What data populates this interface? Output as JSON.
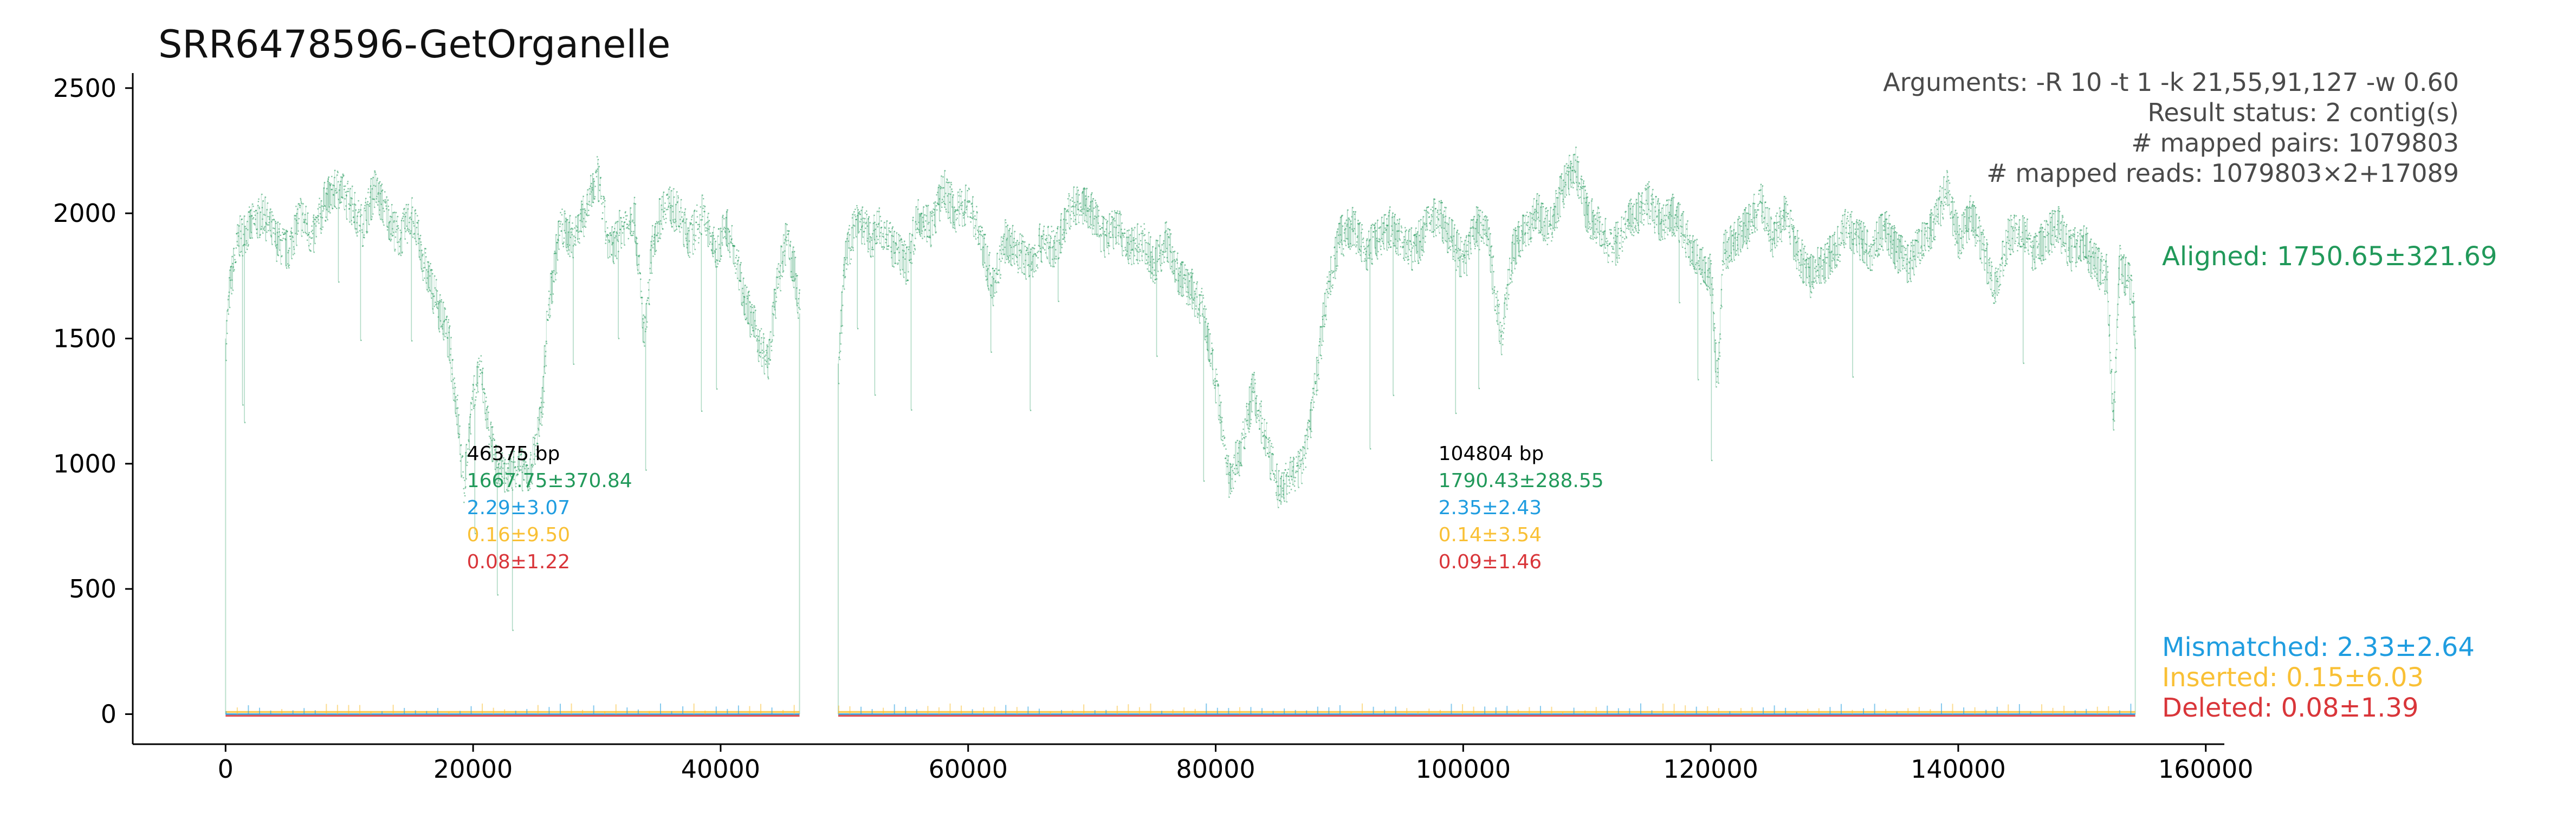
{
  "chart_data": {
    "type": "scatter",
    "title": "SRR6478596-GetOrganelle",
    "xlabel": "",
    "ylabel": "",
    "xlim": [
      -7500,
      161500
    ],
    "ylim": [
      -120,
      2560
    ],
    "x_ticks": [
      0,
      20000,
      40000,
      60000,
      80000,
      100000,
      120000,
      140000,
      160000
    ],
    "y_ticks": [
      0,
      500,
      1000,
      1500,
      2000,
      2500
    ],
    "grid": false,
    "info_lines": [
      "Arguments: -R 10 -t 1 -k 21,55,91,127 -w 0.60",
      "Result status: 2 contig(s)",
      "# mapped pairs: 1079803",
      "# mapped reads: 1079803×2+17089"
    ],
    "series_labels": [
      {
        "name": "aligned",
        "text": "Aligned: 1750.65±321.69",
        "color": "#21995a"
      },
      {
        "name": "mismatched",
        "text": "Mismatched: 2.33±2.64",
        "color": "#1f9de0"
      },
      {
        "name": "inserted",
        "text": "Inserted: 0.15±6.03",
        "color": "#f9c035"
      },
      {
        "name": "deleted",
        "text": "Deleted: 0.08±1.39",
        "color": "#d9363a"
      }
    ],
    "contigs": [
      {
        "start": 0,
        "end": 46375,
        "length_label": "46375 bp",
        "aligned_label": "1667.75±370.84",
        "mismatched_label": "2.29±3.07",
        "inserted_label": "0.16±9.50",
        "deleted_label": "0.08±1.22",
        "annotation_x": 19500,
        "coverage_profile": [
          [
            0,
            1500
          ],
          [
            300,
            1700
          ],
          [
            1000,
            1900
          ],
          [
            2000,
            1950
          ],
          [
            3000,
            2000
          ],
          [
            4000,
            1900
          ],
          [
            5000,
            1850
          ],
          [
            6000,
            2000
          ],
          [
            7000,
            1900
          ],
          [
            8000,
            2050
          ],
          [
            9000,
            2100
          ],
          [
            10000,
            2050
          ],
          [
            11000,
            1950
          ],
          [
            12000,
            2100
          ],
          [
            13000,
            2000
          ],
          [
            14000,
            1900
          ],
          [
            15000,
            2000
          ],
          [
            16000,
            1800
          ],
          [
            17000,
            1650
          ],
          [
            18000,
            1500
          ],
          [
            18700,
            1200
          ],
          [
            19200,
            900
          ],
          [
            19800,
            1200
          ],
          [
            20500,
            1400
          ],
          [
            21200,
            1150
          ],
          [
            21800,
            1000
          ],
          [
            22500,
            950
          ],
          [
            23500,
            1000
          ],
          [
            24500,
            950
          ],
          [
            25500,
            1200
          ],
          [
            26000,
            1600
          ],
          [
            27000,
            1950
          ],
          [
            28000,
            1900
          ],
          [
            29000,
            2000
          ],
          [
            30000,
            2150
          ],
          [
            31000,
            1850
          ],
          [
            32000,
            1950
          ],
          [
            33000,
            2000
          ],
          [
            33800,
            1500
          ],
          [
            34500,
            1900
          ],
          [
            35500,
            2050
          ],
          [
            36500,
            2000
          ],
          [
            37500,
            1900
          ],
          [
            38500,
            2000
          ],
          [
            39500,
            1850
          ],
          [
            40500,
            1950
          ],
          [
            41500,
            1750
          ],
          [
            42300,
            1600
          ],
          [
            43000,
            1500
          ],
          [
            43800,
            1400
          ],
          [
            44500,
            1700
          ],
          [
            45300,
            1900
          ],
          [
            46000,
            1750
          ],
          [
            46375,
            1600
          ]
        ]
      },
      {
        "start": 49500,
        "end": 154304,
        "length_label": "104804 bp",
        "aligned_label": "1790.43±288.55",
        "mismatched_label": "2.35±2.43",
        "inserted_label": "0.14±3.54",
        "deleted_label": "0.09±1.46",
        "annotation_x": 98000,
        "coverage_profile": [
          [
            49500,
            1400
          ],
          [
            50000,
            1800
          ],
          [
            51000,
            2000
          ],
          [
            52000,
            1900
          ],
          [
            53000,
            1950
          ],
          [
            54000,
            1850
          ],
          [
            55000,
            1800
          ],
          [
            56000,
            2000
          ],
          [
            57000,
            1950
          ],
          [
            58000,
            2100
          ],
          [
            59000,
            2000
          ],
          [
            60000,
            2050
          ],
          [
            61000,
            1900
          ],
          [
            62000,
            1700
          ],
          [
            63000,
            1900
          ],
          [
            64000,
            1850
          ],
          [
            65000,
            1800
          ],
          [
            66000,
            1900
          ],
          [
            67000,
            1850
          ],
          [
            68000,
            2000
          ],
          [
            69000,
            2050
          ],
          [
            70000,
            2000
          ],
          [
            71000,
            1900
          ],
          [
            72000,
            1950
          ],
          [
            73000,
            1850
          ],
          [
            74000,
            1900
          ],
          [
            75000,
            1800
          ],
          [
            76000,
            1900
          ],
          [
            77000,
            1750
          ],
          [
            78000,
            1700
          ],
          [
            79000,
            1600
          ],
          [
            80000,
            1300
          ],
          [
            81000,
            950
          ],
          [
            82000,
            1050
          ],
          [
            83000,
            1300
          ],
          [
            84000,
            1100
          ],
          [
            85000,
            900
          ],
          [
            86000,
            950
          ],
          [
            87000,
            1000
          ],
          [
            88000,
            1300
          ],
          [
            89000,
            1700
          ],
          [
            90000,
            1900
          ],
          [
            91000,
            1950
          ],
          [
            92000,
            1850
          ],
          [
            93000,
            1900
          ],
          [
            94000,
            1950
          ],
          [
            95000,
            1900
          ],
          [
            96000,
            1850
          ],
          [
            97000,
            1950
          ],
          [
            98000,
            2000
          ],
          [
            99000,
            1900
          ],
          [
            100000,
            1800
          ],
          [
            101000,
            1950
          ],
          [
            102000,
            1900
          ],
          [
            103000,
            1500
          ],
          [
            104000,
            1850
          ],
          [
            105000,
            1950
          ],
          [
            106000,
            2000
          ],
          [
            107000,
            1950
          ],
          [
            108000,
            2100
          ],
          [
            109000,
            2200
          ],
          [
            110000,
            2000
          ],
          [
            111000,
            1950
          ],
          [
            112000,
            1850
          ],
          [
            113000,
            1950
          ],
          [
            114000,
            2000
          ],
          [
            115000,
            2050
          ],
          [
            116000,
            1950
          ],
          [
            117000,
            2000
          ],
          [
            118000,
            1900
          ],
          [
            119000,
            1800
          ],
          [
            120000,
            1750
          ],
          [
            120500,
            1300
          ],
          [
            121000,
            1850
          ],
          [
            122000,
            1900
          ],
          [
            123000,
            1950
          ],
          [
            124000,
            2050
          ],
          [
            125000,
            1900
          ],
          [
            126000,
            2000
          ],
          [
            127000,
            1850
          ],
          [
            128000,
            1750
          ],
          [
            129000,
            1800
          ],
          [
            130000,
            1850
          ],
          [
            131000,
            1950
          ],
          [
            132000,
            1900
          ],
          [
            133000,
            1850
          ],
          [
            134000,
            1950
          ],
          [
            135000,
            1850
          ],
          [
            136000,
            1800
          ],
          [
            137000,
            1900
          ],
          [
            138000,
            1950
          ],
          [
            139000,
            2100
          ],
          [
            140000,
            1900
          ],
          [
            141000,
            2000
          ],
          [
            142000,
            1850
          ],
          [
            143000,
            1700
          ],
          [
            144000,
            1900
          ],
          [
            145000,
            1950
          ],
          [
            146000,
            1850
          ],
          [
            147000,
            1900
          ],
          [
            148000,
            1950
          ],
          [
            149000,
            1850
          ],
          [
            150000,
            1900
          ],
          [
            151000,
            1800
          ],
          [
            152000,
            1750
          ],
          [
            152500,
            1150
          ],
          [
            153000,
            1800
          ],
          [
            154000,
            1700
          ],
          [
            154304,
            1500
          ]
        ]
      }
    ]
  }
}
